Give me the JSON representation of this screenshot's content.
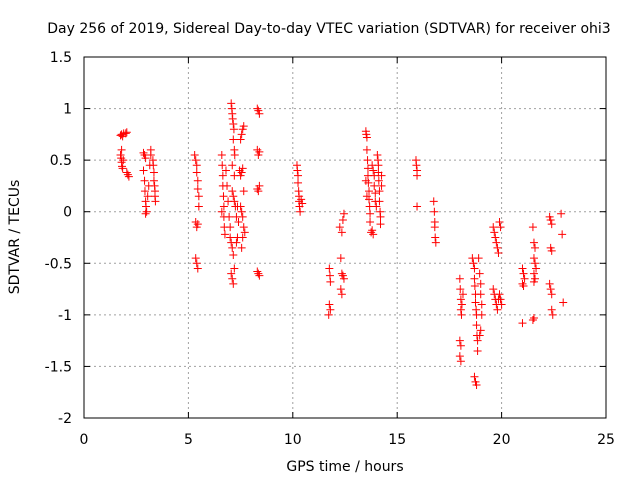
{
  "chart_data": {
    "type": "scatter",
    "title": "Day 256 of 2019, Sidereal Day-to-day VTEC variation (SDTVAR) for receiver ohi3",
    "xlabel": "GPS time / hours",
    "ylabel": "SDTVAR / TECUs",
    "xlim": [
      0,
      25
    ],
    "ylim": [
      -2,
      1.5
    ],
    "xticks": [
      0,
      5,
      10,
      15,
      20,
      25
    ],
    "yticks": [
      -2,
      -1.5,
      -1,
      -0.5,
      0,
      0.5,
      1,
      1.5
    ],
    "xtick_labels": [
      "0",
      "5",
      "10",
      "15",
      "20",
      "25"
    ],
    "ytick_labels": [
      "-2",
      "-1.5",
      "-1",
      "-0.5",
      "0",
      "0.5",
      "1",
      "1.5"
    ],
    "grid": true,
    "marker": "+",
    "color": "#ff0000",
    "series": [
      {
        "name": "SDTVAR",
        "points": [
          [
            1.75,
            0.74
          ],
          [
            1.8,
            0.75
          ],
          [
            1.85,
            0.73
          ],
          [
            1.9,
            0.76
          ],
          [
            2.0,
            0.76
          ],
          [
            2.05,
            0.77
          ],
          [
            1.75,
            0.55
          ],
          [
            1.78,
            0.52
          ],
          [
            1.8,
            0.48
          ],
          [
            1.82,
            0.44
          ],
          [
            1.85,
            0.42
          ],
          [
            1.8,
            0.6
          ],
          [
            1.88,
            0.5
          ],
          [
            2.05,
            0.38
          ],
          [
            2.1,
            0.36
          ],
          [
            2.15,
            0.34
          ],
          [
            2.85,
            0.57
          ],
          [
            2.9,
            0.55
          ],
          [
            2.95,
            0.52
          ],
          [
            2.85,
            0.4
          ],
          [
            2.9,
            0.3
          ],
          [
            2.92,
            0.2
          ],
          [
            2.95,
            0.1
          ],
          [
            2.97,
            0.05
          ],
          [
            3.0,
            0.0
          ],
          [
            2.95,
            -0.02
          ],
          [
            3.05,
            0.15
          ],
          [
            3.1,
            0.25
          ],
          [
            3.15,
            0.45
          ],
          [
            3.2,
            0.55
          ],
          [
            3.2,
            0.6
          ],
          [
            3.3,
            0.5
          ],
          [
            3.32,
            0.45
          ],
          [
            3.35,
            0.38
          ],
          [
            3.35,
            0.3
          ],
          [
            3.38,
            0.25
          ],
          [
            3.4,
            0.2
          ],
          [
            3.4,
            0.15
          ],
          [
            3.42,
            0.1
          ],
          [
            5.3,
            0.55
          ],
          [
            5.35,
            0.5
          ],
          [
            5.4,
            0.45
          ],
          [
            5.4,
            0.38
          ],
          [
            5.45,
            0.3
          ],
          [
            5.45,
            0.22
          ],
          [
            5.5,
            0.15
          ],
          [
            5.5,
            0.05
          ],
          [
            5.35,
            -0.1
          ],
          [
            5.4,
            -0.15
          ],
          [
            5.45,
            -0.12
          ],
          [
            5.35,
            -0.45
          ],
          [
            5.4,
            -0.5
          ],
          [
            5.45,
            -0.55
          ],
          [
            6.6,
            0.55
          ],
          [
            6.62,
            0.45
          ],
          [
            6.65,
            0.35
          ],
          [
            6.65,
            0.25
          ],
          [
            6.68,
            0.15
          ],
          [
            6.7,
            0.05
          ],
          [
            6.7,
            -0.05
          ],
          [
            6.72,
            -0.15
          ],
          [
            6.75,
            -0.22
          ],
          [
            6.6,
            0.0
          ],
          [
            6.8,
            0.4
          ],
          [
            6.85,
            0.25
          ],
          [
            6.9,
            0.1
          ],
          [
            6.95,
            -0.05
          ],
          [
            7.0,
            -0.15
          ],
          [
            7.0,
            -0.25
          ],
          [
            7.1,
            -0.35
          ],
          [
            7.15,
            -0.42
          ],
          [
            7.05,
            -0.3
          ],
          [
            7.05,
            1.05
          ],
          [
            7.08,
            1.0
          ],
          [
            7.1,
            0.95
          ],
          [
            7.12,
            0.9
          ],
          [
            7.15,
            0.85
          ],
          [
            7.18,
            0.8
          ],
          [
            7.15,
            0.7
          ],
          [
            7.2,
            0.6
          ],
          [
            7.22,
            0.55
          ],
          [
            7.1,
            0.2
          ],
          [
            7.15,
            0.15
          ],
          [
            7.2,
            0.1
          ],
          [
            7.25,
            0.05
          ],
          [
            7.1,
            0.45
          ],
          [
            7.2,
            0.35
          ],
          [
            7.05,
            -0.6
          ],
          [
            7.1,
            -0.65
          ],
          [
            7.15,
            -0.7
          ],
          [
            7.2,
            -0.55
          ],
          [
            7.3,
            -0.3
          ],
          [
            7.35,
            -0.25
          ],
          [
            7.3,
            -0.05
          ],
          [
            7.35,
            0.05
          ],
          [
            7.4,
            -0.1
          ],
          [
            7.45,
            0.4
          ],
          [
            7.5,
            0.35
          ],
          [
            7.55,
            0.38
          ],
          [
            7.6,
            0.42
          ],
          [
            7.5,
            0.7
          ],
          [
            7.55,
            0.75
          ],
          [
            7.6,
            0.8
          ],
          [
            7.65,
            0.83
          ],
          [
            7.5,
            0.05
          ],
          [
            7.55,
            0.0
          ],
          [
            7.6,
            -0.05
          ],
          [
            7.65,
            -0.15
          ],
          [
            7.7,
            -0.2
          ],
          [
            7.55,
            -0.35
          ],
          [
            7.6,
            -0.25
          ],
          [
            7.65,
            0.2
          ],
          [
            8.3,
            1.0
          ],
          [
            8.35,
            0.98
          ],
          [
            8.4,
            0.95
          ],
          [
            8.3,
            0.6
          ],
          [
            8.35,
            0.55
          ],
          [
            8.4,
            0.58
          ],
          [
            8.3,
            0.22
          ],
          [
            8.35,
            0.2
          ],
          [
            8.4,
            0.25
          ],
          [
            8.3,
            -0.58
          ],
          [
            8.35,
            -0.6
          ],
          [
            8.4,
            -0.62
          ],
          [
            10.2,
            0.45
          ],
          [
            10.22,
            0.4
          ],
          [
            10.25,
            0.35
          ],
          [
            10.25,
            0.28
          ],
          [
            10.28,
            0.2
          ],
          [
            10.3,
            0.15
          ],
          [
            10.3,
            0.1
          ],
          [
            10.32,
            0.05
          ],
          [
            10.35,
            0.0
          ],
          [
            10.4,
            0.12
          ],
          [
            10.45,
            0.08
          ],
          [
            11.75,
            -0.55
          ],
          [
            11.78,
            -0.62
          ],
          [
            11.8,
            -0.68
          ],
          [
            11.75,
            -0.9
          ],
          [
            11.8,
            -0.95
          ],
          [
            11.72,
            -1.0
          ],
          [
            12.25,
            -0.15
          ],
          [
            12.35,
            -0.2
          ],
          [
            12.4,
            -0.08
          ],
          [
            12.45,
            -0.02
          ],
          [
            12.3,
            -0.45
          ],
          [
            12.35,
            -0.6
          ],
          [
            12.4,
            -0.62
          ],
          [
            12.45,
            -0.65
          ],
          [
            12.3,
            -0.75
          ],
          [
            12.35,
            -0.8
          ],
          [
            13.5,
            0.78
          ],
          [
            13.52,
            0.75
          ],
          [
            13.55,
            0.72
          ],
          [
            13.55,
            0.6
          ],
          [
            13.58,
            0.5
          ],
          [
            13.6,
            0.42
          ],
          [
            13.6,
            0.35
          ],
          [
            13.62,
            0.28
          ],
          [
            13.65,
            0.2
          ],
          [
            13.65,
            0.12
          ],
          [
            13.68,
            0.05
          ],
          [
            13.7,
            -0.02
          ],
          [
            13.7,
            -0.1
          ],
          [
            13.5,
            0.3
          ],
          [
            13.55,
            0.15
          ],
          [
            13.75,
            -0.2
          ],
          [
            13.8,
            -0.18
          ],
          [
            13.85,
            -0.22
          ],
          [
            13.8,
            0.45
          ],
          [
            13.85,
            0.4
          ],
          [
            13.9,
            0.35
          ],
          [
            13.9,
            0.25
          ],
          [
            13.95,
            0.18
          ],
          [
            13.95,
            0.1
          ],
          [
            14.0,
            0.05
          ],
          [
            14.05,
            0.55
          ],
          [
            14.08,
            0.5
          ],
          [
            14.1,
            0.45
          ],
          [
            14.1,
            0.38
          ],
          [
            14.12,
            0.3
          ],
          [
            14.15,
            0.2
          ],
          [
            14.15,
            0.1
          ],
          [
            14.18,
            0.0
          ],
          [
            14.2,
            -0.05
          ],
          [
            14.2,
            -0.12
          ],
          [
            14.25,
            0.25
          ],
          [
            14.25,
            0.35
          ],
          [
            15.9,
            0.5
          ],
          [
            15.92,
            0.45
          ],
          [
            15.95,
            0.4
          ],
          [
            15.95,
            0.35
          ],
          [
            15.95,
            0.05
          ],
          [
            16.75,
            0.1
          ],
          [
            16.78,
            0.0
          ],
          [
            16.8,
            -0.1
          ],
          [
            16.8,
            -0.15
          ],
          [
            16.82,
            -0.25
          ],
          [
            16.85,
            -0.3
          ],
          [
            18.0,
            -0.65
          ],
          [
            18.02,
            -0.75
          ],
          [
            18.05,
            -0.85
          ],
          [
            18.05,
            -0.95
          ],
          [
            18.08,
            -1.0
          ],
          [
            18.1,
            -0.9
          ],
          [
            18.15,
            -0.8
          ],
          [
            18.0,
            -1.25
          ],
          [
            18.05,
            -1.3
          ],
          [
            18.0,
            -1.4
          ],
          [
            18.05,
            -1.45
          ],
          [
            18.6,
            -0.45
          ],
          [
            18.65,
            -0.5
          ],
          [
            18.7,
            -0.55
          ],
          [
            18.7,
            -0.65
          ],
          [
            18.72,
            -0.72
          ],
          [
            18.75,
            -0.8
          ],
          [
            18.75,
            -0.88
          ],
          [
            18.78,
            -0.95
          ],
          [
            18.8,
            -1.0
          ],
          [
            18.8,
            -1.1
          ],
          [
            18.82,
            -1.2
          ],
          [
            18.85,
            -1.25
          ],
          [
            18.85,
            -1.35
          ],
          [
            18.7,
            -1.6
          ],
          [
            18.75,
            -1.65
          ],
          [
            18.8,
            -1.68
          ],
          [
            18.95,
            -0.6
          ],
          [
            19.0,
            -0.7
          ],
          [
            19.0,
            -0.8
          ],
          [
            19.05,
            -0.9
          ],
          [
            19.05,
            -1.0
          ],
          [
            19.0,
            -1.15
          ],
          [
            18.95,
            -1.2
          ],
          [
            18.9,
            -0.45
          ],
          [
            19.6,
            -0.15
          ],
          [
            19.65,
            -0.2
          ],
          [
            19.7,
            -0.25
          ],
          [
            19.75,
            -0.3
          ],
          [
            19.8,
            -0.35
          ],
          [
            19.85,
            -0.4
          ],
          [
            19.9,
            -0.1
          ],
          [
            19.95,
            -0.15
          ],
          [
            19.6,
            -0.75
          ],
          [
            19.65,
            -0.8
          ],
          [
            19.7,
            -0.85
          ],
          [
            19.75,
            -0.9
          ],
          [
            19.8,
            -0.95
          ],
          [
            19.85,
            -0.85
          ],
          [
            19.9,
            -0.8
          ],
          [
            19.95,
            -0.85
          ],
          [
            20.0,
            -0.9
          ],
          [
            21.0,
            -0.55
          ],
          [
            21.05,
            -0.6
          ],
          [
            21.1,
            -0.65
          ],
          [
            21.0,
            -0.7
          ],
          [
            21.05,
            -0.72
          ],
          [
            21.0,
            -1.08
          ],
          [
            21.5,
            -0.15
          ],
          [
            21.55,
            -0.3
          ],
          [
            21.6,
            -0.35
          ],
          [
            21.55,
            -0.45
          ],
          [
            21.6,
            -0.5
          ],
          [
            21.65,
            -0.55
          ],
          [
            21.55,
            -0.6
          ],
          [
            21.6,
            -0.65
          ],
          [
            21.55,
            -0.68
          ],
          [
            21.5,
            -1.05
          ],
          [
            21.55,
            -1.03
          ],
          [
            22.3,
            -0.05
          ],
          [
            22.35,
            -0.08
          ],
          [
            22.4,
            -0.12
          ],
          [
            22.35,
            -0.35
          ],
          [
            22.4,
            -0.38
          ],
          [
            22.3,
            -0.7
          ],
          [
            22.35,
            -0.75
          ],
          [
            22.4,
            -0.8
          ],
          [
            22.4,
            -0.95
          ],
          [
            22.45,
            -1.0
          ],
          [
            22.85,
            -0.02
          ],
          [
            22.9,
            -0.22
          ],
          [
            22.95,
            -0.88
          ]
        ]
      }
    ]
  }
}
